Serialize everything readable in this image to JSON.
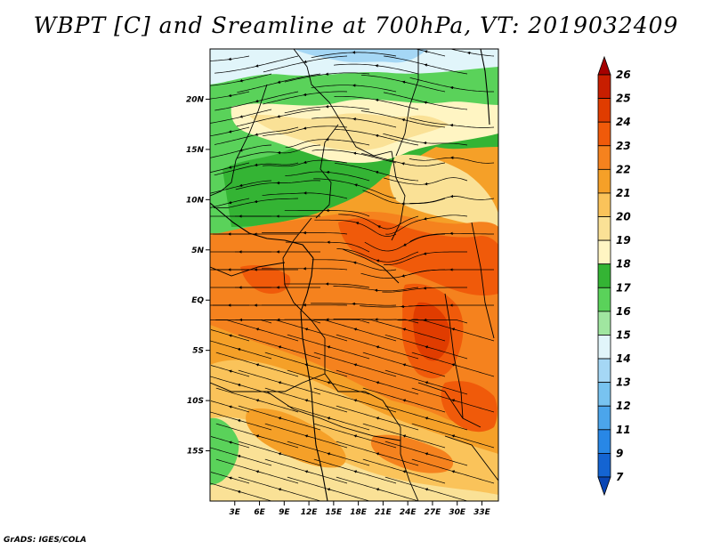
{
  "title": "WBPT [C] and Sreamline at 700hPa, VT: 2019032409",
  "credit": "GrADS: IGES/COLA",
  "map": {
    "lat_range": [
      -20,
      25
    ],
    "lon_range": [
      0,
      35
    ],
    "lat_ticks": [
      {
        "value": 20,
        "label": "20N"
      },
      {
        "value": 15,
        "label": "15N"
      },
      {
        "value": 10,
        "label": "10N"
      },
      {
        "value": 5,
        "label": "5N"
      },
      {
        "value": 0,
        "label": "EQ"
      },
      {
        "value": -5,
        "label": "5S"
      },
      {
        "value": -10,
        "label": "10S"
      },
      {
        "value": -15,
        "label": "15S"
      }
    ],
    "lon_ticks": [
      {
        "value": 3,
        "label": "3E"
      },
      {
        "value": 6,
        "label": "6E"
      },
      {
        "value": 9,
        "label": "9E"
      },
      {
        "value": 12,
        "label": "12E"
      },
      {
        "value": 15,
        "label": "15E"
      },
      {
        "value": 18,
        "label": "18E"
      },
      {
        "value": 21,
        "label": "21E"
      },
      {
        "value": 24,
        "label": "24E"
      },
      {
        "value": 27,
        "label": "27E"
      },
      {
        "value": 30,
        "label": "30E"
      },
      {
        "value": 33,
        "label": "33E"
      }
    ]
  },
  "colorbar": {
    "levels": [
      "26",
      "25",
      "24",
      "23",
      "22",
      "21",
      "20",
      "19",
      "18",
      "17",
      "16",
      "15",
      "14",
      "13",
      "12",
      "11",
      "9",
      "7"
    ],
    "colors": [
      "#a50000",
      "#c81e00",
      "#e03c00",
      "#f05a0a",
      "#f5821e",
      "#f5a028",
      "#fac35a",
      "#fae196",
      "#fff5c3",
      "#34b434",
      "#5ad25a",
      "#a0e6a0",
      "#e1f5fa",
      "#a5d7f5",
      "#78c3f0",
      "#4ba5eb",
      "#2887e6",
      "#1464d2",
      "#0a46b4"
    ]
  }
}
